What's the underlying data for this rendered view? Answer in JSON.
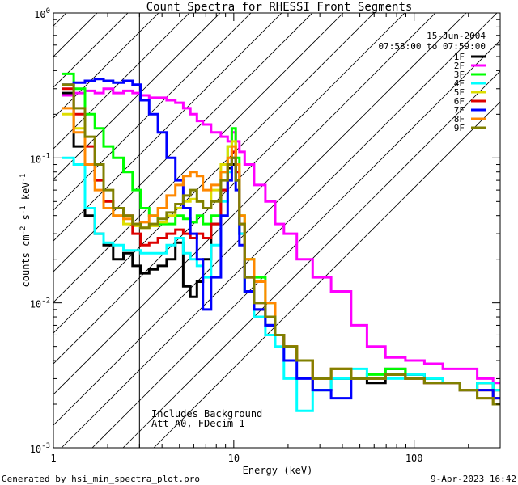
{
  "chart_data": {
    "type": "line",
    "title": "Count Spectra for RHESSI Front Segments",
    "xlabel": "Energy (keV)",
    "ylabel_parts": {
      "base": "counts cm",
      "exp1": "-2",
      "mid": " s",
      "exp2": "-1",
      "unit": " keV",
      "exp3": "-1"
    },
    "x_scale": "log",
    "y_scale": "log",
    "xlim": [
      1,
      300
    ],
    "ylim": [
      0.001,
      1
    ],
    "x_ticks": [
      {
        "value": 1,
        "label": "1"
      },
      {
        "value": 10,
        "label": "10"
      },
      {
        "value": 100,
        "label": "100"
      }
    ],
    "y_ticks": [
      {
        "value": 1,
        "base": "10",
        "exp": "0"
      },
      {
        "value": 0.1,
        "base": "10",
        "exp": "-1"
      },
      {
        "value": 0.01,
        "base": "10",
        "exp": "-2"
      },
      {
        "value": 0.001,
        "base": "10",
        "exp": "-3"
      }
    ],
    "date": "15-Jun-2004",
    "time_range": "07:58:00 to 07:59:00",
    "annotation_lines": [
      "Includes Background",
      "Att A0, FDecim 1"
    ],
    "shaded_below_keV": 3,
    "series": [
      {
        "name": "1F",
        "color": "#000000",
        "energy": [
          1.2,
          1.4,
          1.6,
          1.8,
          2.0,
          2.3,
          2.6,
          2.9,
          3.2,
          3.6,
          4.0,
          4.5,
          5.0,
          5.5,
          6.0,
          6.5,
          7.0,
          8.0,
          9.0,
          9.5,
          10.0,
          10.5,
          11.0,
          12.0,
          14.0,
          16.0,
          18.0,
          20.0,
          25.0,
          30.0,
          40.0,
          50.0,
          60.0,
          80.0,
          100.0,
          130.0,
          160.0,
          200.0,
          250.0,
          300.0
        ],
        "values": [
          0.28,
          0.12,
          0.04,
          0.03,
          0.025,
          0.02,
          0.022,
          0.018,
          0.016,
          0.017,
          0.018,
          0.02,
          0.026,
          0.013,
          0.011,
          0.014,
          0.02,
          0.035,
          0.06,
          0.085,
          0.09,
          0.07,
          0.03,
          0.012,
          0.009,
          0.007,
          0.006,
          0.005,
          0.004,
          0.0025,
          0.003,
          0.003,
          0.0028,
          0.0035,
          0.0032,
          0.003,
          0.0028,
          0.0025,
          0.0028,
          0.0025
        ]
      },
      {
        "name": "2F",
        "color": "#ff00ff",
        "energy": [
          1.2,
          1.4,
          1.6,
          1.8,
          2.0,
          2.3,
          2.6,
          2.9,
          3.2,
          3.6,
          4.0,
          4.5,
          5.0,
          5.5,
          6.0,
          6.5,
          7.0,
          8.0,
          9.0,
          9.5,
          10.0,
          10.5,
          11.0,
          12.0,
          14.0,
          16.0,
          18.0,
          20.0,
          25.0,
          30.0,
          40.0,
          50.0,
          60.0,
          80.0,
          100.0,
          130.0,
          160.0,
          200.0,
          250.0,
          300.0
        ],
        "values": [
          0.27,
          0.28,
          0.29,
          0.28,
          0.3,
          0.28,
          0.29,
          0.28,
          0.27,
          0.26,
          0.26,
          0.25,
          0.24,
          0.22,
          0.2,
          0.18,
          0.17,
          0.15,
          0.14,
          0.13,
          0.15,
          0.13,
          0.11,
          0.09,
          0.065,
          0.05,
          0.035,
          0.03,
          0.02,
          0.015,
          0.012,
          0.007,
          0.005,
          0.0042,
          0.004,
          0.0038,
          0.0035,
          0.0035,
          0.003,
          0.0028
        ]
      },
      {
        "name": "3F",
        "color": "#00ff00",
        "energy": [
          1.2,
          1.4,
          1.6,
          1.8,
          2.0,
          2.3,
          2.6,
          2.9,
          3.2,
          3.6,
          4.0,
          4.5,
          5.0,
          5.5,
          6.0,
          6.5,
          7.0,
          8.0,
          9.0,
          9.5,
          10.0,
          10.5,
          11.0,
          12.0,
          14.0,
          16.0,
          18.0,
          20.0,
          25.0,
          30.0,
          40.0,
          50.0,
          60.0,
          80.0,
          100.0,
          130.0,
          160.0,
          200.0,
          250.0,
          300.0
        ],
        "values": [
          0.38,
          0.3,
          0.2,
          0.16,
          0.12,
          0.1,
          0.08,
          0.06,
          0.045,
          0.04,
          0.035,
          0.035,
          0.04,
          0.038,
          0.036,
          0.04,
          0.035,
          0.04,
          0.08,
          0.12,
          0.16,
          0.1,
          0.04,
          0.02,
          0.015,
          0.01,
          0.006,
          0.005,
          0.004,
          0.003,
          0.0035,
          0.003,
          0.0032,
          0.0035,
          0.003,
          0.003,
          0.0028,
          0.0025,
          0.0028,
          0.0025
        ]
      },
      {
        "name": "4F",
        "color": "#00ffff",
        "energy": [
          1.2,
          1.4,
          1.6,
          1.8,
          2.0,
          2.3,
          2.6,
          2.9,
          3.2,
          3.6,
          4.0,
          4.5,
          5.0,
          5.5,
          6.0,
          6.5,
          7.0,
          8.0,
          9.0,
          9.5,
          10.0,
          10.5,
          11.0,
          12.0,
          14.0,
          16.0,
          18.0,
          20.0,
          25.0,
          30.0,
          40.0,
          50.0,
          60.0,
          80.0,
          100.0,
          130.0,
          160.0,
          200.0,
          250.0,
          300.0
        ],
        "values": [
          0.1,
          0.09,
          0.045,
          0.03,
          0.026,
          0.025,
          0.023,
          0.023,
          0.022,
          0.022,
          0.022,
          0.025,
          0.028,
          0.022,
          0.02,
          0.018,
          0.015,
          0.025,
          0.05,
          0.08,
          0.1,
          0.07,
          0.03,
          0.012,
          0.008,
          0.006,
          0.005,
          0.003,
          0.0018,
          0.0025,
          0.003,
          0.0035,
          0.003,
          0.003,
          0.0032,
          0.003,
          0.0028,
          0.0025,
          0.0028,
          0.0025
        ]
      },
      {
        "name": "5F",
        "color": "#dddd00",
        "energy": [
          1.2,
          1.4,
          1.6,
          1.8,
          2.0,
          2.3,
          2.6,
          2.9,
          3.2,
          3.6,
          4.0,
          4.5,
          5.0,
          5.5,
          6.0,
          6.5,
          7.0,
          8.0,
          9.0,
          9.5,
          10.0,
          10.5,
          11.0,
          12.0,
          14.0,
          16.0,
          18.0,
          20.0,
          25.0,
          30.0,
          40.0,
          50.0,
          60.0,
          80.0,
          100.0,
          130.0,
          160.0,
          200.0,
          250.0,
          300.0
        ],
        "values": [
          0.2,
          0.16,
          0.09,
          0.07,
          0.05,
          0.04,
          0.035,
          0.034,
          0.033,
          0.034,
          0.036,
          0.04,
          0.045,
          0.05,
          0.052,
          0.05,
          0.045,
          0.06,
          0.09,
          0.12,
          0.13,
          0.09,
          0.04,
          0.02,
          0.014,
          0.01,
          0.006,
          0.005,
          0.004,
          0.003,
          0.0035,
          0.003,
          0.003,
          0.0032,
          0.003,
          0.0028,
          0.0028,
          0.0025,
          0.0025,
          0.0022
        ]
      },
      {
        "name": "6F",
        "color": "#dd0000",
        "energy": [
          1.2,
          1.4,
          1.6,
          1.8,
          2.0,
          2.3,
          2.6,
          2.9,
          3.2,
          3.6,
          4.0,
          4.5,
          5.0,
          5.5,
          6.0,
          6.5,
          7.0,
          8.0,
          9.0,
          9.5,
          10.0,
          10.5,
          11.0,
          12.0,
          14.0,
          16.0,
          18.0,
          20.0,
          25.0,
          30.0,
          40.0,
          50.0,
          60.0,
          80.0,
          100.0,
          130.0,
          160.0,
          200.0,
          250.0,
          300.0
        ],
        "values": [
          0.3,
          0.2,
          0.12,
          0.07,
          0.05,
          0.045,
          0.04,
          0.03,
          0.025,
          0.026,
          0.028,
          0.03,
          0.032,
          0.03,
          0.028,
          0.03,
          0.028,
          0.035,
          0.06,
          0.09,
          0.11,
          0.08,
          0.035,
          0.015,
          0.01,
          0.008,
          0.006,
          0.005,
          0.004,
          0.003,
          0.0035,
          0.003,
          0.003,
          0.0032,
          0.003,
          0.0028,
          0.0028,
          0.0025,
          0.0025,
          0.0022
        ]
      },
      {
        "name": "7F",
        "color": "#0000ff",
        "energy": [
          1.2,
          1.4,
          1.6,
          1.8,
          2.0,
          2.3,
          2.6,
          2.9,
          3.2,
          3.6,
          4.0,
          4.5,
          5.0,
          5.5,
          6.0,
          6.5,
          7.0,
          8.0,
          9.0,
          9.5,
          10.0,
          10.5,
          11.0,
          12.0,
          14.0,
          16.0,
          18.0,
          20.0,
          25.0,
          30.0,
          40.0,
          50.0,
          60.0,
          80.0,
          100.0,
          130.0,
          160.0,
          200.0,
          250.0,
          300.0
        ],
        "values": [
          0.32,
          0.33,
          0.34,
          0.35,
          0.34,
          0.33,
          0.34,
          0.32,
          0.25,
          0.2,
          0.15,
          0.1,
          0.07,
          0.045,
          0.03,
          0.02,
          0.009,
          0.015,
          0.04,
          0.07,
          0.1,
          0.06,
          0.025,
          0.012,
          0.009,
          0.007,
          0.006,
          0.004,
          0.003,
          0.0025,
          0.0022,
          0.003,
          0.003,
          0.0032,
          0.003,
          0.0028,
          0.0028,
          0.0025,
          0.0025,
          0.0022
        ]
      },
      {
        "name": "8F",
        "color": "#ff8800",
        "energy": [
          1.2,
          1.4,
          1.6,
          1.8,
          2.0,
          2.3,
          2.6,
          2.9,
          3.2,
          3.6,
          4.0,
          4.5,
          5.0,
          5.5,
          6.0,
          6.5,
          7.0,
          8.0,
          9.0,
          9.5,
          10.0,
          10.5,
          11.0,
          12.0,
          14.0,
          16.0,
          18.0,
          20.0,
          25.0,
          30.0,
          40.0,
          50.0,
          60.0,
          80.0,
          100.0,
          130.0,
          160.0,
          200.0,
          250.0,
          300.0
        ],
        "values": [
          0.22,
          0.15,
          0.09,
          0.06,
          0.045,
          0.04,
          0.038,
          0.035,
          0.036,
          0.04,
          0.045,
          0.055,
          0.065,
          0.075,
          0.08,
          0.075,
          0.06,
          0.065,
          0.08,
          0.1,
          0.12,
          0.09,
          0.04,
          0.02,
          0.014,
          0.01,
          0.006,
          0.005,
          0.004,
          0.003,
          0.0035,
          0.003,
          0.003,
          0.0032,
          0.003,
          0.0028,
          0.0028,
          0.0025,
          0.0022,
          0.002
        ]
      },
      {
        "name": "9F",
        "color": "#808000",
        "energy": [
          1.2,
          1.4,
          1.6,
          1.8,
          2.0,
          2.3,
          2.6,
          2.9,
          3.2,
          3.6,
          4.0,
          4.5,
          5.0,
          5.5,
          6.0,
          6.5,
          7.0,
          8.0,
          9.0,
          9.5,
          10.0,
          10.5,
          11.0,
          12.0,
          14.0,
          16.0,
          18.0,
          20.0,
          25.0,
          30.0,
          40.0,
          50.0,
          60.0,
          80.0,
          100.0,
          130.0,
          160.0,
          200.0,
          250.0,
          300.0
        ],
        "values": [
          0.32,
          0.22,
          0.14,
          0.09,
          0.06,
          0.045,
          0.04,
          0.035,
          0.033,
          0.035,
          0.038,
          0.042,
          0.048,
          0.055,
          0.06,
          0.05,
          0.045,
          0.05,
          0.07,
          0.09,
          0.1,
          0.07,
          0.035,
          0.015,
          0.01,
          0.008,
          0.006,
          0.005,
          0.004,
          0.003,
          0.0035,
          0.003,
          0.003,
          0.0032,
          0.003,
          0.0028,
          0.0028,
          0.0025,
          0.0022,
          0.002
        ]
      }
    ]
  },
  "footer": {
    "left": "Generated by hsi_min_spectra_plot.pro",
    "right": "9-Apr-2023 16:42"
  }
}
